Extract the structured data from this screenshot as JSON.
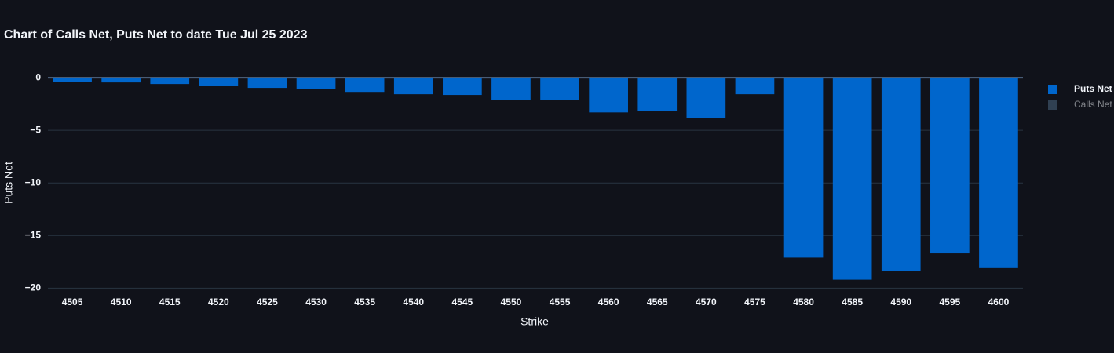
{
  "chart_data": {
    "type": "bar",
    "title": "Chart of Calls Net, Puts Net to date Tue Jul 25 2023",
    "x_label": "Strike",
    "y_label": "Puts Net",
    "categories": [
      4505,
      4510,
      4515,
      4520,
      4525,
      4530,
      4535,
      4540,
      4545,
      4550,
      4555,
      4560,
      4565,
      4570,
      4575,
      4580,
      4585,
      4590,
      4595,
      4600
    ],
    "series": [
      {
        "name": "Puts Net",
        "color": "#0066cc",
        "visible": true,
        "values": [
          -0.37,
          -0.45,
          -0.6,
          -0.75,
          -0.97,
          -1.1,
          -1.35,
          -1.57,
          -1.64,
          -2.1,
          -2.1,
          -3.3,
          -3.2,
          -3.8,
          -1.57,
          -17.1,
          -19.2,
          -18.4,
          -16.7,
          -18.1
        ]
      },
      {
        "name": "Calls Net",
        "color": "#4f6d8a",
        "visible": false,
        "values": [
          null,
          null,
          null,
          null,
          null,
          null,
          null,
          null,
          null,
          null,
          null,
          null,
          null,
          null,
          null,
          null,
          null,
          null,
          null,
          null
        ]
      }
    ],
    "ylim": [
      -20.2,
      1.05
    ],
    "yticks": [
      {
        "value": 0,
        "label": "0"
      },
      {
        "value": -5,
        "label": "−5"
      },
      {
        "value": -10,
        "label": "−10"
      },
      {
        "value": -15,
        "label": "−15"
      },
      {
        "value": -20,
        "label": "−20"
      }
    ],
    "grid": true,
    "legend": "right"
  }
}
